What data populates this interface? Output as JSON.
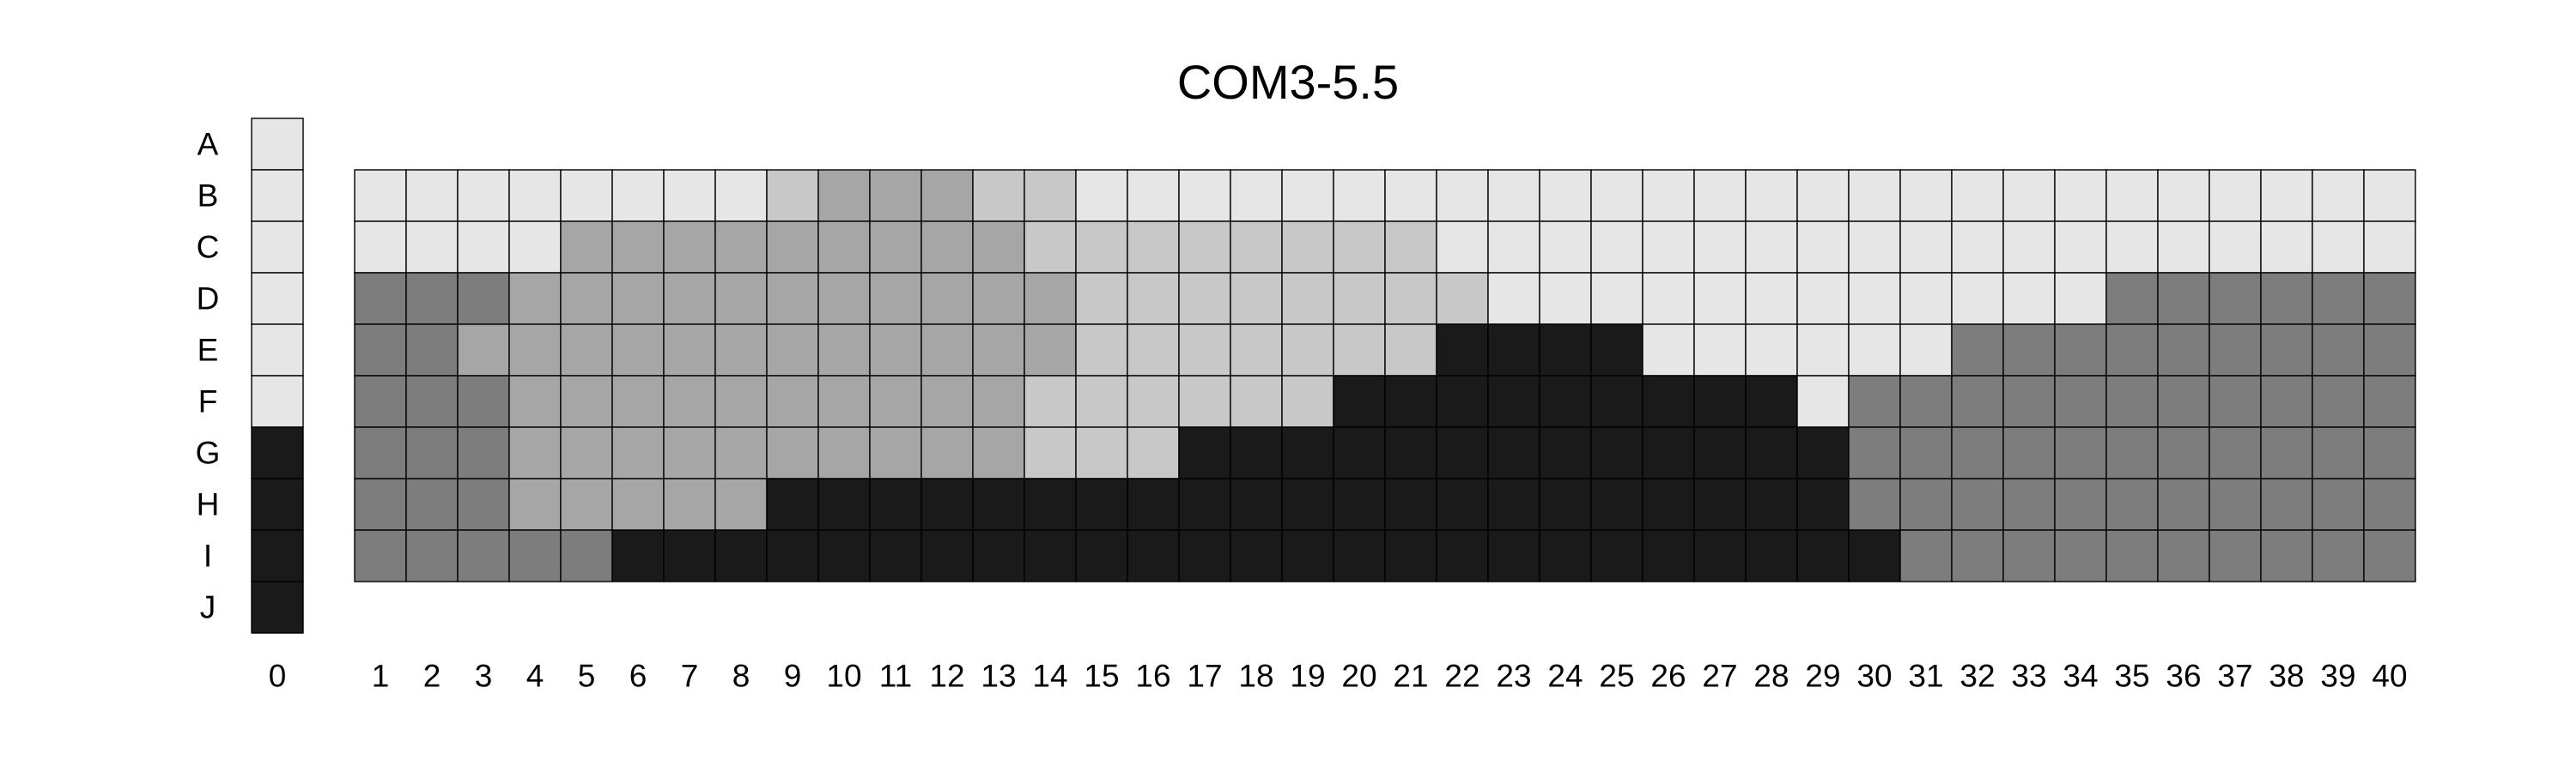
{
  "chart_data": {
    "type": "heatmap",
    "title": "COM3-5.5",
    "xlabel": "",
    "ylabel": "",
    "x_ticks": [
      "0",
      "1",
      "2",
      "3",
      "4",
      "5",
      "6",
      "7",
      "8",
      "9",
      "10",
      "11",
      "12",
      "13",
      "14",
      "15",
      "16",
      "17",
      "18",
      "19",
      "20",
      "21",
      "22",
      "23",
      "24",
      "25",
      "26",
      "27",
      "28",
      "29",
      "30",
      "31",
      "32",
      "33",
      "34",
      "35",
      "36",
      "37",
      "38",
      "39",
      "40"
    ],
    "y_ticks": [
      "A",
      "B",
      "C",
      "D",
      "E",
      "F",
      "G",
      "H",
      "I",
      "J"
    ],
    "levels": {
      "0": "#e6e6e6",
      "1": "#c8c8c8",
      "2": "#a6a6a6",
      "3": "#7d7d7d",
      "4": "#1a1a1a"
    },
    "column_0": {
      "rows": [
        "A",
        "B",
        "C",
        "D",
        "E",
        "F",
        "G",
        "H",
        "I",
        "J"
      ],
      "values": [
        0,
        0,
        0,
        0,
        0,
        0,
        4,
        4,
        4,
        4
      ]
    },
    "grid": {
      "rows": [
        "B",
        "C",
        "D",
        "E",
        "F",
        "G",
        "H",
        "I"
      ],
      "columns": [
        1,
        2,
        3,
        4,
        5,
        6,
        7,
        8,
        9,
        10,
        11,
        12,
        13,
        14,
        15,
        16,
        17,
        18,
        19,
        20,
        21,
        22,
        23,
        24,
        25,
        26,
        27,
        28,
        29,
        30,
        31,
        32,
        33,
        34,
        35,
        36,
        37,
        38,
        39,
        40
      ],
      "values": [
        [
          0,
          0,
          0,
          0,
          0,
          0,
          0,
          0,
          1,
          2,
          2,
          2,
          1,
          1,
          0,
          0,
          0,
          0,
          0,
          0,
          0,
          0,
          0,
          0,
          0,
          0,
          0,
          0,
          0,
          0,
          0,
          0,
          0,
          0,
          0,
          0,
          0,
          0,
          0,
          0
        ],
        [
          0,
          0,
          0,
          0,
          2,
          2,
          2,
          2,
          2,
          2,
          2,
          2,
          2,
          1,
          1,
          1,
          1,
          1,
          1,
          1,
          1,
          0,
          0,
          0,
          0,
          0,
          0,
          0,
          0,
          0,
          0,
          0,
          0,
          0,
          0,
          0,
          0,
          0,
          0,
          0
        ],
        [
          3,
          3,
          3,
          2,
          2,
          2,
          2,
          2,
          2,
          2,
          2,
          2,
          2,
          2,
          1,
          1,
          1,
          1,
          1,
          1,
          1,
          1,
          0,
          0,
          0,
          0,
          0,
          0,
          0,
          0,
          0,
          0,
          0,
          0,
          3,
          3,
          3,
          3,
          3,
          3
        ],
        [
          3,
          3,
          2,
          2,
          2,
          2,
          2,
          2,
          2,
          2,
          2,
          2,
          2,
          2,
          1,
          1,
          1,
          1,
          1,
          1,
          1,
          4,
          4,
          4,
          4,
          0,
          0,
          0,
          0,
          0,
          0,
          3,
          3,
          3,
          3,
          3,
          3,
          3,
          3,
          3
        ],
        [
          3,
          3,
          3,
          2,
          2,
          2,
          2,
          2,
          2,
          2,
          2,
          2,
          2,
          1,
          1,
          1,
          1,
          1,
          1,
          4,
          4,
          4,
          4,
          4,
          4,
          4,
          4,
          4,
          0,
          3,
          3,
          3,
          3,
          3,
          3,
          3,
          3,
          3,
          3,
          3
        ],
        [
          3,
          3,
          3,
          2,
          2,
          2,
          2,
          2,
          2,
          2,
          2,
          2,
          2,
          1,
          1,
          1,
          4,
          4,
          4,
          4,
          4,
          4,
          4,
          4,
          4,
          4,
          4,
          4,
          4,
          3,
          3,
          3,
          3,
          3,
          3,
          3,
          3,
          3,
          3,
          3
        ],
        [
          3,
          3,
          3,
          2,
          2,
          2,
          2,
          2,
          4,
          4,
          4,
          4,
          4,
          4,
          4,
          4,
          4,
          4,
          4,
          4,
          4,
          4,
          4,
          4,
          4,
          4,
          4,
          4,
          4,
          3,
          3,
          3,
          3,
          3,
          3,
          3,
          3,
          3,
          3,
          3
        ],
        [
          3,
          3,
          3,
          3,
          3,
          4,
          4,
          4,
          4,
          4,
          4,
          4,
          4,
          4,
          4,
          4,
          4,
          4,
          4,
          4,
          4,
          4,
          4,
          4,
          4,
          4,
          4,
          4,
          4,
          4,
          3,
          3,
          3,
          3,
          3,
          3,
          3,
          3,
          3,
          3
        ]
      ]
    }
  }
}
